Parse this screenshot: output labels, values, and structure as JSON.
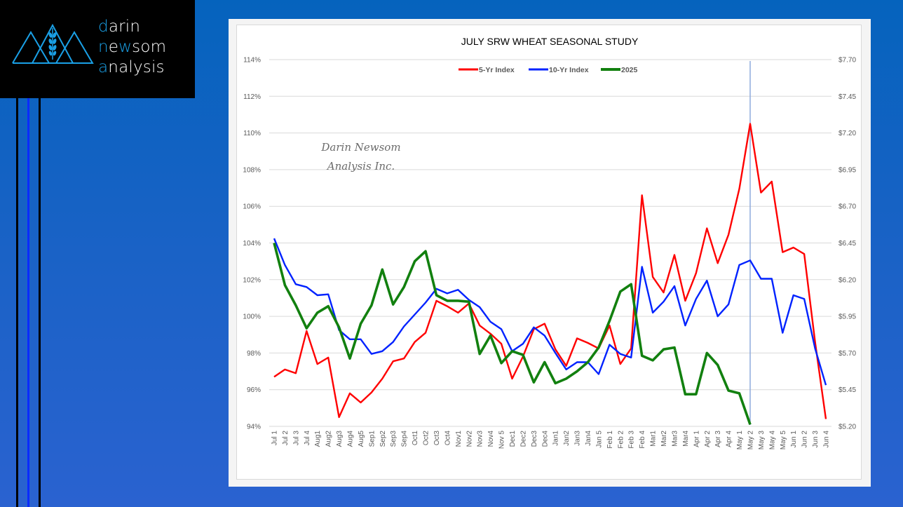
{
  "brand": {
    "lines": [
      {
        "accent": "d",
        "rest": "arin",
        "pre": ""
      },
      {
        "accent": "n",
        "rest": "som",
        "pre": "",
        "mid_plain": "e",
        "mid_accent": "w"
      },
      {
        "accent": "a",
        "rest": "nalysis",
        "pre": ""
      }
    ],
    "line1": {
      "accent": "d",
      "rest": "arin"
    },
    "line2": {
      "accent": "n",
      "plain1": "e",
      "accent2": "w",
      "plain2": "som"
    },
    "line3": {
      "accent": "a",
      "rest": "nalysis"
    },
    "logo_icon": "mountains-wheat-icon",
    "accent_color": "#1aa0e6"
  },
  "colors": {
    "five_yr": "#ff0000",
    "ten_yr": "#0022ff",
    "y2025": "#12800f",
    "marker_line": "#8faadc"
  },
  "chart_data": {
    "type": "line",
    "title": "JULY SRW WHEAT SEASONAL STUDY",
    "watermark": [
      "Darin Newsom",
      "Analysis Inc."
    ],
    "xlabel": "",
    "ylabel": "",
    "ylim": [
      94,
      114
    ],
    "yticks": [
      "94%",
      "96%",
      "98%",
      "100%",
      "102%",
      "104%",
      "106%",
      "108%",
      "110%",
      "112%",
      "114%"
    ],
    "y2lim": [
      5.2,
      7.7
    ],
    "y2ticks": [
      "$5.20",
      "$5.45",
      "$5.70",
      "$5.95",
      "$6.20",
      "$6.45",
      "$6.70",
      "$6.95",
      "$7.20",
      "$7.45",
      "$7.70"
    ],
    "grid": true,
    "legend_position": "top-center",
    "vertical_marker": "May 2",
    "categories": [
      "Jul 1",
      "Jul 2",
      "Jul 3",
      "Jul 4",
      "Aug1",
      "Aug2",
      "Aug3",
      "Aug4",
      "Aug5",
      "Sep1",
      "Sep2",
      "Sep3",
      "Sep4",
      "Oct1",
      "Oct2",
      "Oct3",
      "Oct4",
      "Nov1",
      "Nov2",
      "Nov3",
      "Nov4",
      "Nov 5",
      "Dec1",
      "Dec2",
      "Dec3",
      "Dec4",
      "Jan1",
      "Jan2",
      "Jan3",
      "Jan4",
      "Jan 5",
      "Feb 1",
      "Feb 2",
      "Feb 3",
      "Feb 4",
      "Mar1",
      "Mar2",
      "Mar3",
      "Mar4",
      "Apr 1",
      "Apr 2",
      "Apr 3",
      "Apr 4",
      "May 1",
      "May 2",
      "May 3",
      "May 4",
      "May 5",
      "Jun 1",
      "Jun 2",
      "Jun 3",
      "Jun 4"
    ],
    "series": [
      {
        "name": "5-Yr Index",
        "color_key": "five_yr",
        "values": [
          96.7,
          97.1,
          96.9,
          99.2,
          97.4,
          97.75,
          94.5,
          95.8,
          95.3,
          95.85,
          96.6,
          97.55,
          97.7,
          98.6,
          99.1,
          100.85,
          100.55,
          100.2,
          100.7,
          99.5,
          99.05,
          98.5,
          96.6,
          97.8,
          99.3,
          99.6,
          98.2,
          97.3,
          98.8,
          98.55,
          98.25,
          99.5,
          97.4,
          98.25,
          106.6,
          102.15,
          101.3,
          103.35,
          100.85,
          102.35,
          104.8,
          102.9,
          104.45,
          106.95,
          110.5,
          106.75,
          107.35,
          103.5,
          103.75,
          103.4,
          98.6,
          94.4
        ]
      },
      {
        "name": "10-Yr Index",
        "color_key": "ten_yr",
        "values": [
          104.25,
          102.8,
          101.75,
          101.6,
          101.15,
          101.2,
          99.25,
          98.75,
          98.75,
          97.95,
          98.1,
          98.6,
          99.45,
          100.1,
          100.75,
          101.5,
          101.25,
          101.45,
          100.9,
          100.5,
          99.7,
          99.3,
          98.1,
          98.5,
          99.4,
          98.95,
          98.0,
          97.1,
          97.5,
          97.5,
          96.85,
          98.45,
          97.95,
          97.75,
          102.7,
          100.2,
          100.8,
          101.65,
          99.5,
          100.95,
          101.95,
          100.0,
          100.65,
          102.8,
          103.05,
          102.05,
          102.05,
          99.1,
          101.15,
          100.95,
          98.25,
          96.25
        ]
      },
      {
        "name": "2025",
        "color_key": "y2025",
        "values": [
          104.0,
          101.7,
          100.6,
          99.35,
          100.2,
          100.55,
          99.4,
          97.7,
          99.6,
          100.6,
          102.55,
          100.65,
          101.6,
          103.0,
          103.55,
          101.15,
          100.85,
          100.85,
          100.8,
          97.95,
          98.95,
          97.45,
          98.1,
          97.9,
          96.4,
          97.5,
          96.35,
          96.6,
          97.0,
          97.5,
          98.3,
          99.75,
          101.35,
          101.75,
          97.85,
          97.6,
          98.2,
          98.3,
          95.75,
          95.75,
          98.0,
          97.35,
          95.95,
          95.8,
          94.1
        ]
      }
    ]
  }
}
